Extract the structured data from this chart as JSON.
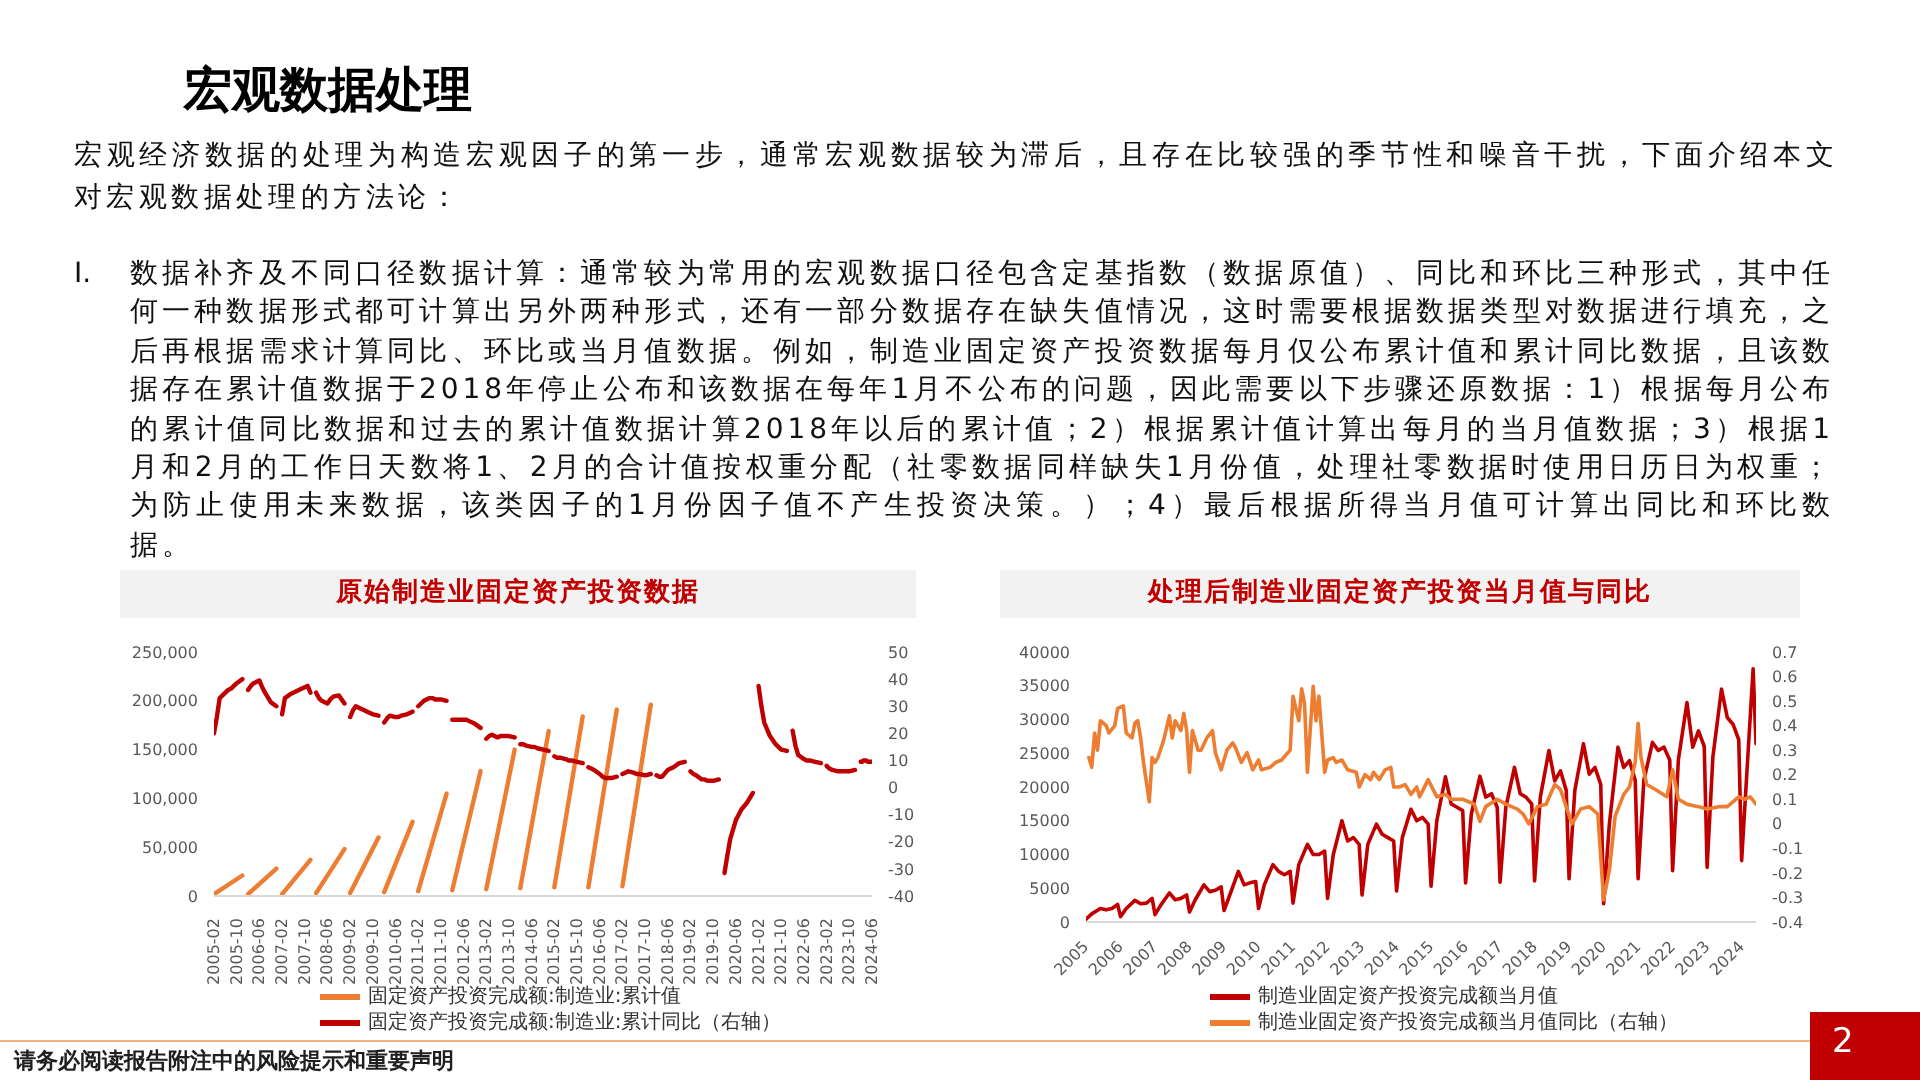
{
  "chart_data": [
    {
      "type": "other",
      "title": "宏观数据处理",
      "annotations": [
        "宏观经济数据的处理为构造宏观因子的第一步，通常宏观数据较为滞后，且存在比较强的季节性和噪音干扰，下面介绍本文对宏观数据处理的方法论：",
        "I.",
        "数据补齐及不同口径数据计算：通常较为常用的宏观数据口径包含定基指数（数据原值）、同比和环比三种形式，其中任何一种数据形式都可计算出另外两种形式，还有一部分数据存在缺失值情况，这时需要根据数据类型对数据进行填充，之后再根据需求计算同比、环比或当月值数据。例如，制造业固定资产投资数据每月仅公布累计值和累计同比数据，且该数据存在累计值数据于2018年停止公布和该数据在每年1月不公布的问题，因此需要以下步骤还原数据：1）根据每月公布的累计值同比数据和过去的累计值数据计算2018年以后的累计值；2）根据累计值计算出每月的当月值数据；3）根据1月和2月的工作日天数将1、2月的合计值按权重分配（社零数据同样缺失1月份值，处理社零数据时使用日历日为权重；为防止使用未来数据，该类因子的1月份因子值不产生投资决策。）；4）最后根据所得当月值可计算出同比和环比数据。",
        "请务必阅读报告附注中的风险提示和重要声明",
        "2"
      ]
    },
    {
      "type": "line",
      "title": "原始制造业固定资产投资数据",
      "xlim": [
        "2005-02",
        "2024-06"
      ],
      "xticks": [
        "2005-02",
        "2005-10",
        "2006-06",
        "2007-02",
        "2007-10",
        "2008-06",
        "2009-02",
        "2009-10",
        "2010-06",
        "2011-02",
        "2011-10",
        "2012-06",
        "2013-02",
        "2013-10",
        "2014-06",
        "2015-02",
        "2015-10",
        "2016-06",
        "2017-02",
        "2017-10",
        "2018-06",
        "2019-02",
        "2019-10",
        "2020-06",
        "2021-02",
        "2021-10",
        "2022-06",
        "2023-02",
        "2023-10",
        "2024-06"
      ],
      "ylim": [
        0,
        250000
      ],
      "yticks": [
        0,
        {
          "value": 50000,
          "label": "50,000"
        },
        {
          "value": 100000,
          "label": "100,000"
        },
        {
          "value": 150000,
          "label": "150,000"
        },
        {
          "value": 200000,
          "label": "200,000"
        },
        {
          "value": 250000,
          "label": "250,000"
        }
      ],
      "y2lim": [
        -40,
        50
      ],
      "y2ticks": [
        -40,
        -30,
        -20,
        -10,
        0,
        10,
        20,
        30,
        40,
        50
      ],
      "legend": "bottom",
      "series": [
        {
          "name": "固定资产投资完成额:制造业:累计值",
          "color": "#ed7d31",
          "x": [
            "2005-02",
            "2005-12",
            "2006-01",
            "2006-02",
            "2006-12",
            "2007-01",
            "2007-02",
            "2007-12",
            "2008-01",
            "2008-02",
            "2008-12",
            "2009-01",
            "2009-02",
            "2009-12",
            "2010-01",
            "2010-02",
            "2010-12",
            "2011-01",
            "2011-02",
            "2011-12",
            "2012-01",
            "2012-02",
            "2012-12",
            "2013-01",
            "2013-02",
            "2013-12",
            "2014-01",
            "2014-02",
            "2014-12",
            "2015-01",
            "2015-02",
            "2015-12",
            "2016-01",
            "2016-02",
            "2016-12",
            "2017-01",
            "2017-02",
            "2017-12"
          ],
          "values": [
            2000,
            21000,
            null,
            2000,
            28000,
            null,
            2000,
            37000,
            null,
            3000,
            48000,
            null,
            3000,
            60000,
            null,
            4000,
            76000,
            null,
            5000,
            105000,
            null,
            6000,
            128000,
            null,
            7000,
            150000,
            null,
            8000,
            169000,
            null,
            9000,
            184000,
            null,
            9000,
            191000,
            null,
            10000,
            196000
          ]
        },
        {
          "name": "固定资产投资完成额:制造业:累计同比（右轴）",
          "color": "#c00000",
          "axis": "y2",
          "x": [
            "2005-02",
            "2005-03",
            "2005-04",
            "2005-06",
            "2005-07",
            "2005-08",
            "2005-10",
            "2005-12",
            "2006-01",
            "2006-02",
            "2006-03",
            "2006-04",
            "2006-06",
            "2006-07",
            "2006-08",
            "2006-10",
            "2006-12",
            "2007-01",
            "2007-02",
            "2007-03",
            "2007-05",
            "2007-07",
            "2007-09",
            "2007-10",
            "2007-11",
            "2007-12",
            "2008-01",
            "2008-02",
            "2008-03",
            "2008-04",
            "2008-06",
            "2008-07",
            "2008-08",
            "2008-10",
            "2008-12",
            "2009-01",
            "2009-02",
            "2009-03",
            "2009-04",
            "2009-06",
            "2009-07",
            "2009-08",
            "2009-10",
            "2009-12",
            "2010-01",
            "2010-02",
            "2010-03",
            "2010-04",
            "2010-06",
            "2010-07",
            "2010-08",
            "2010-10",
            "2010-12",
            "2011-01",
            "2011-02",
            "2011-03",
            "2011-04",
            "2011-06",
            "2011-07",
            "2011-08",
            "2011-10",
            "2011-12",
            "2012-01",
            "2012-02",
            "2012-03",
            "2012-04",
            "2012-06",
            "2012-07",
            "2012-08",
            "2012-10",
            "2012-12",
            "2013-01",
            "2013-02",
            "2013-03",
            "2013-04",
            "2013-06",
            "2013-07",
            "2013-08",
            "2013-10",
            "2013-12",
            "2014-01",
            "2014-02",
            "2014-03",
            "2014-04",
            "2014-06",
            "2014-07",
            "2014-08",
            "2014-10",
            "2014-12",
            "2015-01",
            "2015-02",
            "2015-03",
            "2015-04",
            "2015-06",
            "2015-07",
            "2015-08",
            "2015-10",
            "2015-12",
            "2016-01",
            "2016-02",
            "2016-03",
            "2016-04",
            "2016-06",
            "2016-07",
            "2016-08",
            "2016-10",
            "2016-12",
            "2017-01",
            "2017-02",
            "2017-03",
            "2017-04",
            "2017-06",
            "2017-07",
            "2017-08",
            "2017-10",
            "2017-12",
            "2018-01",
            "2018-02",
            "2018-03",
            "2018-04",
            "2018-06",
            "2018-07",
            "2018-08",
            "2018-10",
            "2018-12",
            "2019-01",
            "2019-02",
            "2019-03",
            "2019-04",
            "2019-06",
            "2019-07",
            "2019-08",
            "2019-10",
            "2019-12",
            "2020-01",
            "2020-02",
            "2020-03",
            "2020-04",
            "2020-06",
            "2020-07",
            "2020-08",
            "2020-10",
            "2020-12",
            "2021-01",
            "2021-02",
            "2021-03",
            "2021-04",
            "2021-06",
            "2021-07",
            "2021-08",
            "2021-10",
            "2021-12",
            "2022-01",
            "2022-02",
            "2022-03",
            "2022-04",
            "2022-06",
            "2022-07",
            "2022-08",
            "2022-10",
            "2022-12",
            "2023-01",
            "2023-02",
            "2023-03",
            "2023-04",
            "2023-06",
            "2023-07",
            "2023-08",
            "2023-10",
            "2023-12",
            "2024-01",
            "2024-02",
            "2024-02-15",
            "2024-03",
            "2024-03-15",
            "2024-04",
            "2024-04-15",
            "2024-05",
            "2024-06"
          ],
          "values": [
            20,
            26,
            33,
            35,
            36,
            36.5,
            38.5,
            40,
            null,
            36,
            37.5,
            38.5,
            39.5,
            37,
            35,
            31.5,
            30,
            null,
            27,
            33,
            34.5,
            35.5,
            36.5,
            37,
            37.5,
            35,
            null,
            35,
            33,
            32,
            31,
            32.5,
            33.5,
            34,
            31,
            null,
            26,
            28.5,
            30,
            29,
            28.5,
            28,
            27,
            26.5,
            null,
            24,
            25.5,
            26.5,
            26,
            26,
            26.5,
            27,
            28,
            null,
            30,
            31,
            32,
            33,
            33,
            32.5,
            32.5,
            32,
            null,
            25,
            25,
            25,
            25,
            25,
            24.5,
            23.5,
            22,
            null,
            18,
            19,
            19.5,
            18.5,
            19,
            19,
            19,
            18.5,
            null,
            16,
            16,
            15.5,
            15,
            15,
            14.5,
            14,
            13.5,
            null,
            11.5,
            11,
            11,
            10.5,
            10,
            10,
            9.5,
            9,
            null,
            7.5,
            7,
            6.5,
            5,
            4,
            3.5,
            3.5,
            4,
            null,
            5,
            5.5,
            6,
            5.5,
            5,
            5,
            4.5,
            5,
            null,
            4.5,
            4,
            4,
            6.5,
            7,
            7.5,
            9,
            9.5,
            null,
            6,
            5,
            4.5,
            3,
            3,
            2.5,
            2.5,
            3,
            null,
            -31.5,
            -25,
            -19,
            -12,
            -10,
            -8,
            -5.5,
            -2,
            null,
            37.5,
            30,
            24,
            19,
            17.5,
            16,
            14,
            13.5,
            null,
            21,
            15.5,
            12,
            10.5,
            10,
            10,
            9.5,
            9,
            null,
            8,
            7,
            6.5,
            6,
            6,
            6,
            6,
            6.5,
            null,
            9.5,
            9.5,
            10,
            10,
            10,
            9.5,
            9.5,
            9.5
          ]
        }
      ]
    },
    {
      "type": "line",
      "title": "处理后制造业固定资产投资当月值与同比",
      "xlim": [
        "2005-01",
        "2024-06"
      ],
      "xticks": [
        "2005",
        "2006",
        "2007",
        "2008",
        "2009",
        "2010",
        "2011",
        "2012",
        "2013",
        "2014",
        "2015",
        "2016",
        "2017",
        "2018",
        "2019",
        "2020",
        "2021",
        "2022",
        "2023",
        "2024"
      ],
      "ylim": [
        0,
        40000
      ],
      "yticks": [
        0,
        5000,
        10000,
        15000,
        20000,
        25000,
        30000,
        35000,
        40000
      ],
      "y2lim": [
        -0.4,
        0.7
      ],
      "y2ticks": [
        -0.4,
        -0.3,
        -0.2,
        -0.1,
        0,
        0.1,
        0.2,
        0.3,
        0.4,
        0.5,
        0.6,
        0.7
      ],
      "legend": "bottom",
      "series": [
        {
          "name": "制造业固定资产投资完成额当月值",
          "color": "#c00000",
          "x": [
            "2005-01",
            "2005-03",
            "2005-06",
            "2005-08",
            "2005-10",
            "2005-12",
            "2006-01",
            "2006-03",
            "2006-06",
            "2006-08",
            "2006-10",
            "2006-12",
            "2007-01",
            "2007-03",
            "2007-06",
            "2007-08",
            "2007-10",
            "2007-12",
            "2008-01",
            "2008-03",
            "2008-06",
            "2008-08",
            "2008-10",
            "2008-12",
            "2009-01",
            "2009-03",
            "2009-06",
            "2009-08",
            "2009-10",
            "2009-12",
            "2010-01",
            "2010-03",
            "2010-06",
            "2010-08",
            "2010-10",
            "2010-12",
            "2011-01",
            "2011-03",
            "2011-06",
            "2011-08",
            "2011-10",
            "2011-12",
            "2012-01",
            "2012-03",
            "2012-06",
            "2012-08",
            "2012-10",
            "2012-12",
            "2013-01",
            "2013-03",
            "2013-06",
            "2013-08",
            "2013-10",
            "2013-12",
            "2014-01",
            "2014-03",
            "2014-06",
            "2014-08",
            "2014-10",
            "2014-12",
            "2015-01",
            "2015-03",
            "2015-06",
            "2015-08",
            "2015-10",
            "2015-12",
            "2016-01",
            "2016-03",
            "2016-06",
            "2016-08",
            "2016-10",
            "2016-12",
            "2017-01",
            "2017-03",
            "2017-06",
            "2017-08",
            "2017-10",
            "2017-12",
            "2018-01",
            "2018-03",
            "2018-06",
            "2018-08",
            "2018-10",
            "2018-12",
            "2019-01",
            "2019-03",
            "2019-06",
            "2019-08",
            "2019-10",
            "2019-12",
            "2020-01",
            "2020-03",
            "2020-06",
            "2020-08",
            "2020-10",
            "2020-12",
            "2021-01",
            "2021-03",
            "2021-06",
            "2021-08",
            "2021-10",
            "2021-12",
            "2022-01",
            "2022-03",
            "2022-06",
            "2022-08",
            "2022-10",
            "2022-12",
            "2023-01",
            "2023-03",
            "2023-06",
            "2023-08",
            "2023-10",
            "2023-12",
            "2024-01",
            "2024-03",
            "2024-05",
            "2024-06"
          ],
          "values": [
            400,
            1200,
            2000,
            1800,
            2000,
            2600,
            800,
            2000,
            3200,
            2700,
            2800,
            3500,
            1100,
            2500,
            4300,
            3300,
            3500,
            4000,
            1500,
            3300,
            5500,
            4500,
            4700,
            5200,
            1700,
            4000,
            7500,
            5500,
            5800,
            6000,
            2000,
            5500,
            8500,
            7500,
            7000,
            7500,
            2800,
            8500,
            11500,
            10000,
            10000,
            10500,
            3500,
            10000,
            15000,
            12000,
            12500,
            11500,
            4000,
            11500,
            14500,
            13000,
            12500,
            12000,
            4600,
            12500,
            16700,
            15000,
            15500,
            14500,
            5300,
            15000,
            21500,
            17500,
            17000,
            16500,
            5800,
            16000,
            21600,
            18500,
            19000,
            17000,
            5900,
            17000,
            22900,
            19000,
            18500,
            17500,
            6100,
            18500,
            25400,
            20900,
            22400,
            19500,
            6400,
            19500,
            26400,
            21900,
            22900,
            20400,
            2700,
            14500,
            25900,
            22900,
            23900,
            21000,
            6400,
            21000,
            26600,
            25400,
            25900,
            24000,
            7600,
            24000,
            32500,
            25900,
            28300,
            26000,
            8100,
            24400,
            34500,
            30300,
            29300,
            27000,
            9100,
            23400,
            37500,
            26400
          ]
        },
        {
          "name": "制造业固定资产投资完成额当月值同比（右轴）",
          "color": "#ed7d31",
          "axis": "y2",
          "x": [
            "2005-02",
            "2005-03",
            "2005-04",
            "2005-05",
            "2005-06",
            "2005-08",
            "2005-09",
            "2005-11",
            "2005-12",
            "2006-02",
            "2006-03",
            "2006-05",
            "2006-06",
            "2006-07",
            "2006-08",
            "2006-09",
            "2006-11",
            "2006-12",
            "2007-01",
            "2007-02",
            "2007-04",
            "2007-06",
            "2007-07",
            "2007-08",
            "2007-10",
            "2007-11",
            "2007-12",
            "2008-01",
            "2008-02",
            "2008-04",
            "2008-05",
            "2008-07",
            "2008-09",
            "2008-10",
            "2008-12",
            "2009-02",
            "2009-04",
            "2009-05",
            "2009-07",
            "2009-09",
            "2009-11",
            "2010-01",
            "2010-02",
            "2010-05",
            "2010-07",
            "2010-09",
            "2010-12",
            "2011-01",
            "2011-03",
            "2011-04",
            "2011-05",
            "2011-06",
            "2011-08",
            "2011-09",
            "2011-10",
            "2011-12",
            "2012-01",
            "2012-03",
            "2012-04",
            "2012-06",
            "2012-08",
            "2012-11",
            "2012-12",
            "2013-02",
            "2013-04",
            "2013-05",
            "2013-07",
            "2013-09",
            "2013-11",
            "2013-12",
            "2014-02",
            "2014-04",
            "2014-06",
            "2014-08",
            "2014-09",
            "2014-12",
            "2015-03",
            "2015-06",
            "2015-08",
            "2015-12",
            "2016-04",
            "2016-06",
            "2016-08",
            "2016-12",
            "2017-03",
            "2017-07",
            "2017-09",
            "2017-11",
            "2018-02",
            "2018-05",
            "2018-08",
            "2018-10",
            "2019-02",
            "2019-05",
            "2019-08",
            "2019-11",
            "2020-01",
            "2020-03",
            "2020-05",
            "2020-08",
            "2020-10",
            "2020-12",
            "2021-01",
            "2021-02",
            "2021-04",
            "2021-07",
            "2021-11",
            "2022-01",
            "2022-03",
            "2022-06",
            "2022-10",
            "2023-01",
            "2023-05",
            "2023-08",
            "2023-12",
            "2024-02",
            "2024-04",
            "2024-06"
          ],
          "values": [
            0.27,
            0.23,
            0.37,
            0.3,
            0.42,
            0.4,
            0.37,
            0.4,
            0.47,
            0.48,
            0.37,
            0.35,
            0.41,
            0.42,
            0.35,
            0.25,
            0.09,
            0.27,
            0.25,
            0.27,
            0.34,
            0.44,
            0.35,
            0.42,
            0.38,
            0.45,
            0.38,
            0.21,
            0.38,
            0.3,
            0.3,
            0.35,
            0.38,
            0.29,
            0.22,
            0.3,
            0.33,
            0.31,
            0.25,
            0.29,
            0.22,
            0.26,
            0.22,
            0.23,
            0.25,
            0.26,
            0.3,
            0.52,
            0.42,
            0.55,
            0.49,
            0.21,
            0.56,
            0.42,
            0.52,
            0.21,
            0.26,
            0.27,
            0.25,
            0.26,
            0.22,
            0.21,
            0.15,
            0.2,
            0.18,
            0.21,
            0.18,
            0.22,
            0.23,
            0.15,
            0.15,
            0.16,
            0.12,
            0.15,
            0.11,
            0.18,
            0.11,
            0.12,
            0.1,
            0.1,
            0.08,
            0.01,
            0.07,
            0.1,
            0.08,
            0.06,
            0.04,
            0.0,
            0.07,
            0.08,
            0.16,
            0.14,
            0.0,
            0.06,
            0.07,
            0.04,
            -0.31,
            -0.19,
            0.03,
            0.12,
            0.15,
            0.25,
            0.41,
            0.27,
            0.16,
            0.14,
            0.11,
            0.22,
            0.1,
            0.08,
            0.07,
            0.06,
            0.07,
            0.07,
            0.11,
            0.1,
            0.11,
            0.08
          ]
        }
      ]
    }
  ]
}
